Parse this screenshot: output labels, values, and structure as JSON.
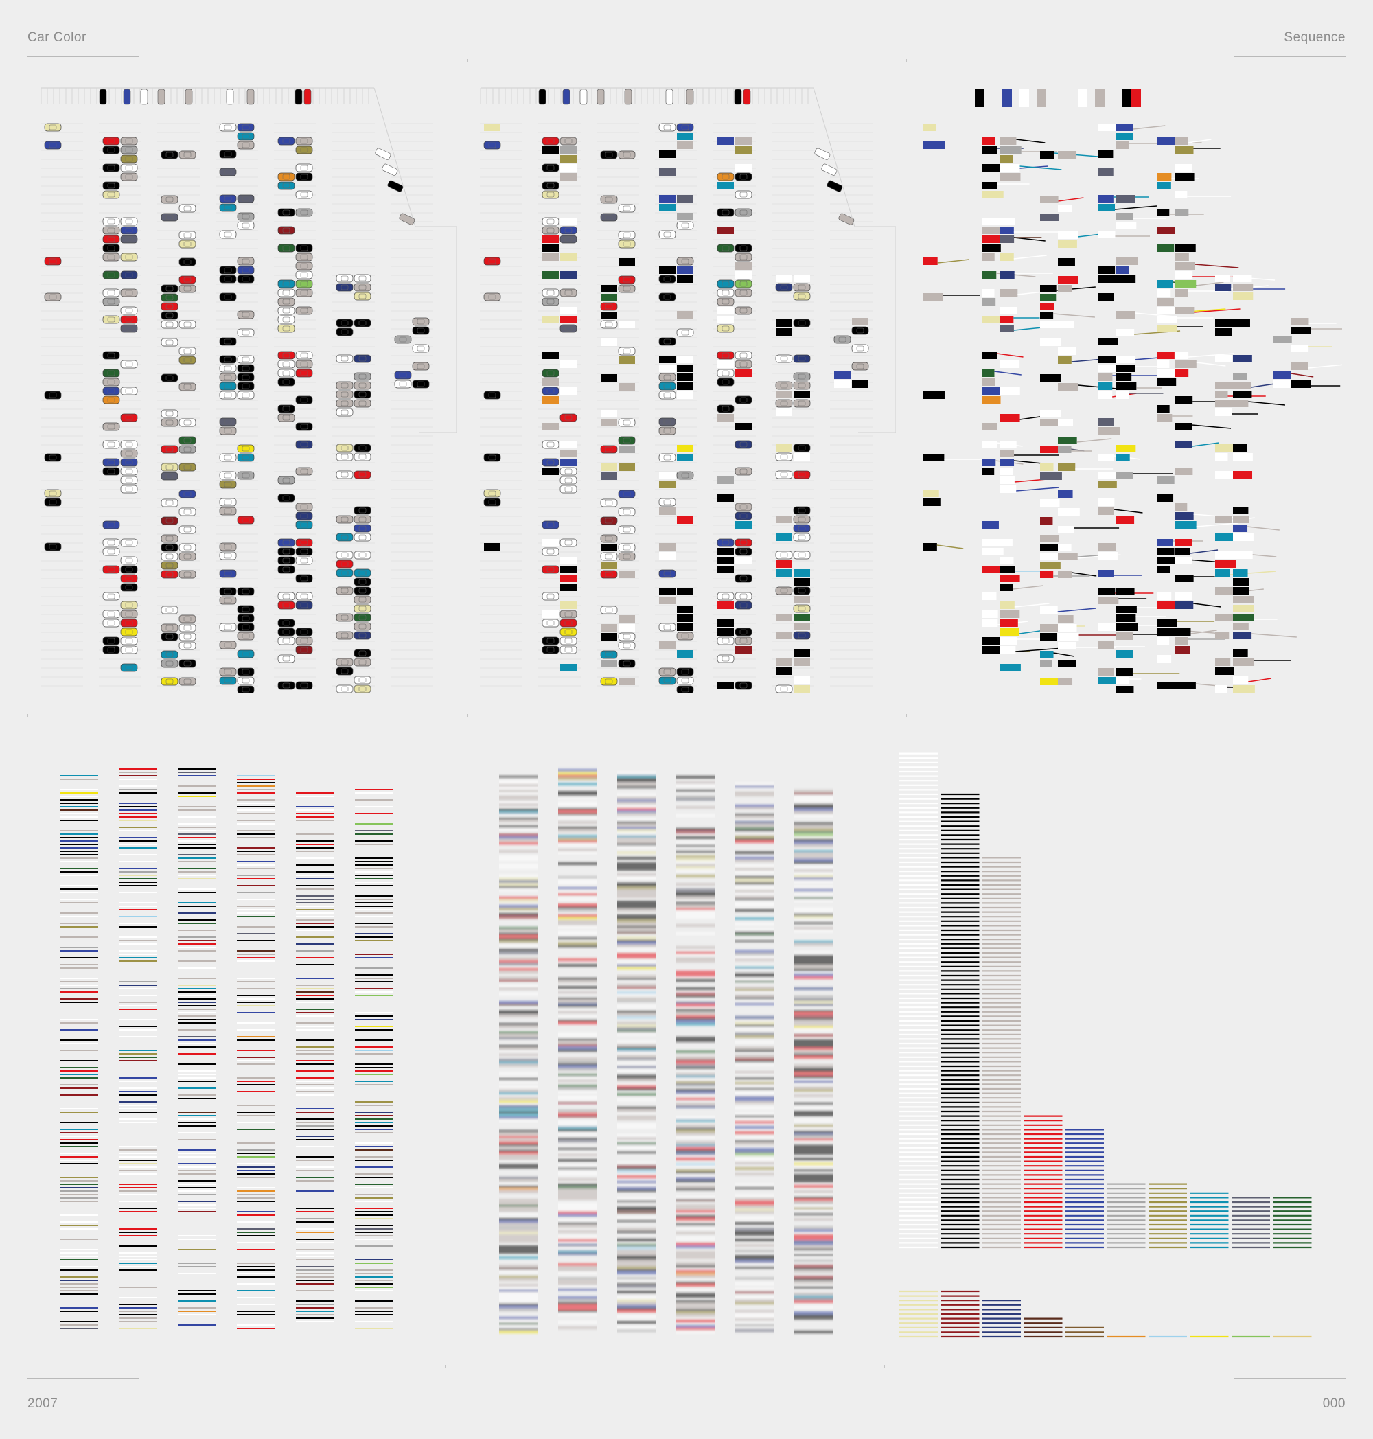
{
  "header": {
    "title": "Car Color",
    "series": "Sequence"
  },
  "footer": {
    "year": "2007",
    "number": "000"
  },
  "colors": {
    "white": "#ffffff",
    "black": "#000000",
    "silver": "#bdb5b1",
    "red": "#e3151c",
    "blue": "#3447a3",
    "gray": "#a7a7a7",
    "olive": "#9d9246",
    "teal": "#0e90b0",
    "slate": "#5e6072",
    "green": "#27622f",
    "cream": "#e8e3a9",
    "maroon": "#8f1a1f",
    "navy": "#2b3a7a",
    "brown": "#5a2c1c",
    "bronze": "#7e5b2e",
    "orange": "#e58d24",
    "sky": "#9ed2ec",
    "yellow": "#f1e313",
    "lime": "#86c45a",
    "gold": "#e2c979"
  },
  "color_totals": {
    "primary": [
      {
        "color": "white",
        "count": 110
      },
      {
        "color": "black",
        "count": 101
      },
      {
        "color": "silver",
        "count": 87
      },
      {
        "color": "red",
        "count": 30
      },
      {
        "color": "blue",
        "count": 27
      },
      {
        "color": "gray",
        "count": 15
      },
      {
        "color": "olive",
        "count": 15
      },
      {
        "color": "teal",
        "count": 13
      },
      {
        "color": "slate",
        "count": 12
      },
      {
        "color": "green",
        "count": 12
      }
    ],
    "secondary": [
      {
        "color": "cream",
        "count": 11
      },
      {
        "color": "maroon",
        "count": 11
      },
      {
        "color": "navy",
        "count": 9
      },
      {
        "color": "brown",
        "count": 5
      },
      {
        "color": "bronze",
        "count": 3
      },
      {
        "color": "orange",
        "count": 1
      },
      {
        "color": "sky",
        "count": 1
      },
      {
        "color": "yellow",
        "count": 1
      },
      {
        "color": "lime",
        "count": 1
      },
      {
        "color": "gold",
        "count": 1
      }
    ]
  }
}
